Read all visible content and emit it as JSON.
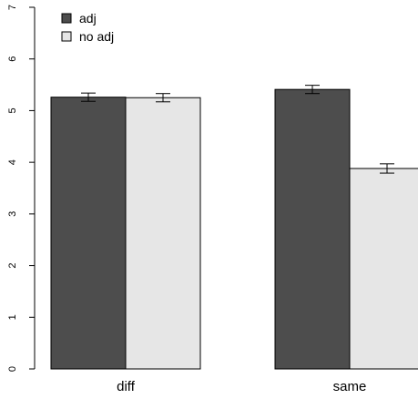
{
  "chart_data": {
    "type": "bar",
    "categories": [
      "diff",
      "same"
    ],
    "series": [
      {
        "name": "adj",
        "values": [
          5.26,
          5.41
        ],
        "err": [
          0.08,
          0.08
        ],
        "color": "#4d4d4d"
      },
      {
        "name": "no adj",
        "values": [
          5.25,
          3.88
        ],
        "err": [
          0.08,
          0.09
        ],
        "color": "#e6e6e6"
      }
    ],
    "ylim": [
      0,
      7
    ],
    "yticks": [
      "0",
      "1",
      "2",
      "3",
      "4",
      "5",
      "6",
      "7"
    ],
    "xlabel": "",
    "ylabel": "",
    "title": "",
    "legend_position": "top-left",
    "grid": false,
    "error_bars": true
  }
}
